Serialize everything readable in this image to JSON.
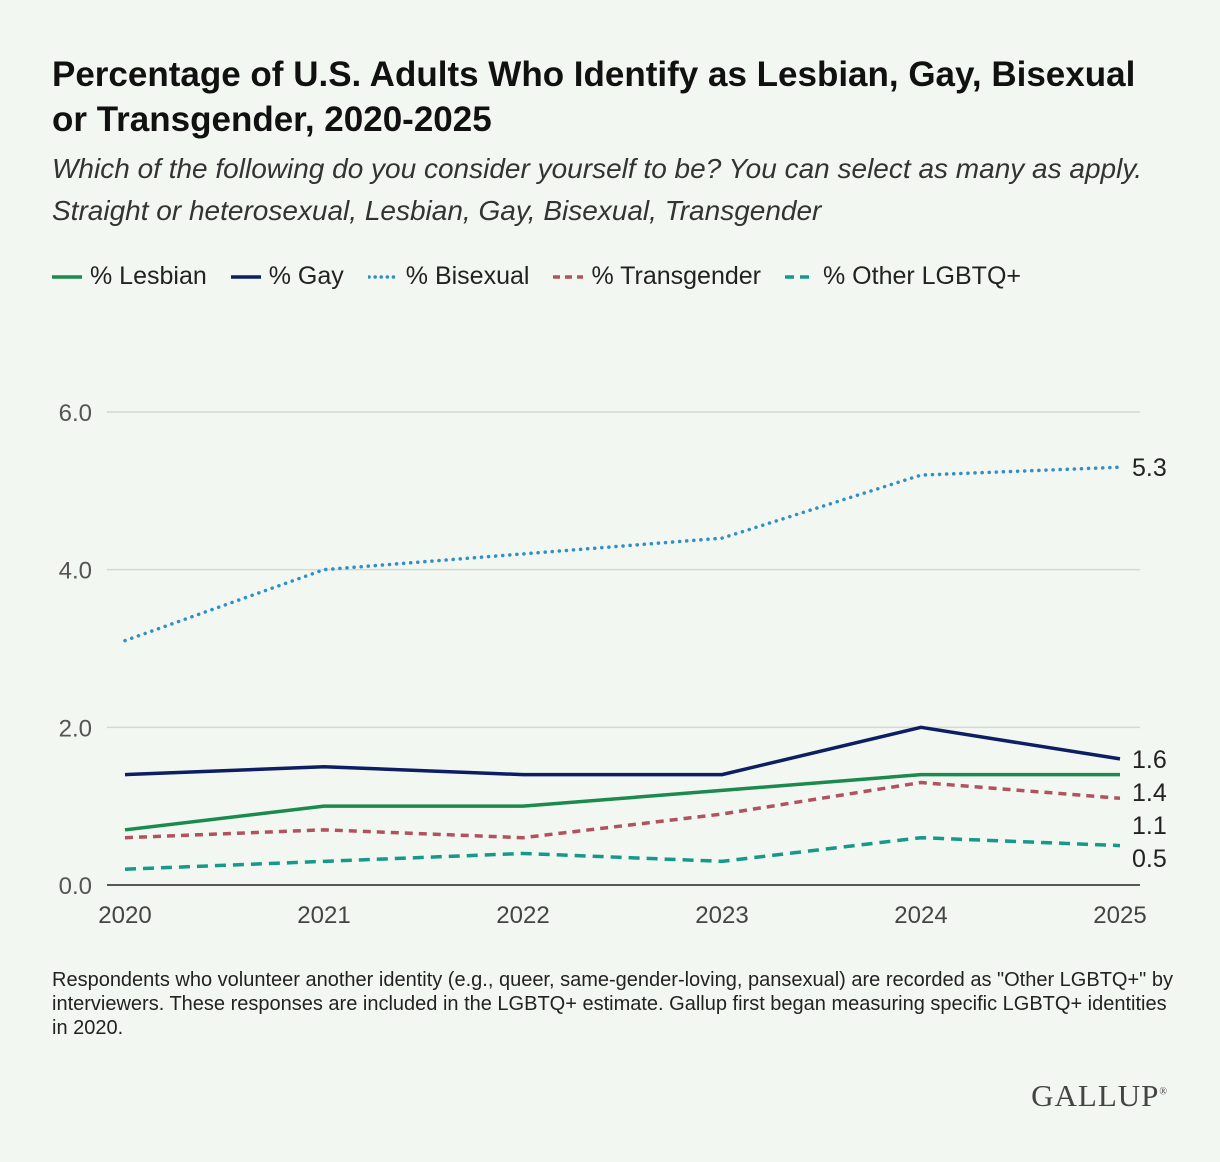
{
  "header": {
    "title": "Percentage of U.S. Adults Who Identify as Lesbian, Gay, Bisexual or Transgender, 2020-2025",
    "subtitle": "Which of the following do you consider yourself to be? You can select as many as apply. Straight or heterosexual, Lesbian, Gay, Bisexual, Transgender"
  },
  "legend": [
    {
      "label": "% Lesbian",
      "color": "#1a8a4f",
      "style": "solid"
    },
    {
      "label": "% Gay",
      "color": "#0d1e63",
      "style": "solid"
    },
    {
      "label": "% Bisexual",
      "color": "#2f8fc6",
      "style": "dotted"
    },
    {
      "label": "% Transgender",
      "color": "#b0535f",
      "style": "dashed"
    },
    {
      "label": "% Other LGBTQ+",
      "color": "#15998a",
      "style": "dashed"
    }
  ],
  "chart_data": {
    "type": "line",
    "title": "Percentage of U.S. Adults Who Identify as Lesbian, Gay, Bisexual or Transgender, 2020-2025",
    "x": [
      "2020",
      "2021",
      "2022",
      "2023",
      "2024",
      "2025"
    ],
    "ylim": [
      0,
      6
    ],
    "yticks": [
      0,
      2,
      4,
      6
    ],
    "ytick_labels": [
      "0.0",
      "2.0",
      "4.0",
      "6.0"
    ],
    "grid": true,
    "xlabel": "",
    "ylabel": "",
    "series": [
      {
        "name": "% Lesbian",
        "values": [
          0.7,
          1.0,
          1.0,
          1.2,
          1.4,
          1.4
        ],
        "color": "#1a8a4f",
        "style": "solid",
        "end_label": "1.4"
      },
      {
        "name": "% Gay",
        "values": [
          1.4,
          1.5,
          1.4,
          1.4,
          2.0,
          1.6
        ],
        "color": "#0d1e63",
        "style": "solid",
        "end_label": "1.6"
      },
      {
        "name": "% Bisexual",
        "values": [
          3.1,
          4.0,
          4.2,
          4.4,
          5.2,
          5.3
        ],
        "color": "#2f8fc6",
        "style": "dotted",
        "end_label": "5.3"
      },
      {
        "name": "% Transgender",
        "values": [
          0.6,
          0.7,
          0.6,
          0.9,
          1.3,
          1.1
        ],
        "color": "#b0535f",
        "style": "dashed",
        "end_label": "1.1"
      },
      {
        "name": "% Other LGBTQ+",
        "values": [
          0.2,
          0.3,
          0.4,
          0.3,
          0.6,
          0.5
        ],
        "color": "#15998a",
        "style": "dashed",
        "end_label": "0.5"
      }
    ]
  },
  "footer": {
    "note": "Respondents who volunteer another identity (e.g., queer, same-gender-loving, pansexual) are recorded as \"Other LGBTQ+\" by interviewers. These responses are included in the LGBTQ+ estimate. Gallup first began measuring specific LGBTQ+ identities in 2020.",
    "logo": "GALLUP",
    "logo_mark": "®"
  }
}
